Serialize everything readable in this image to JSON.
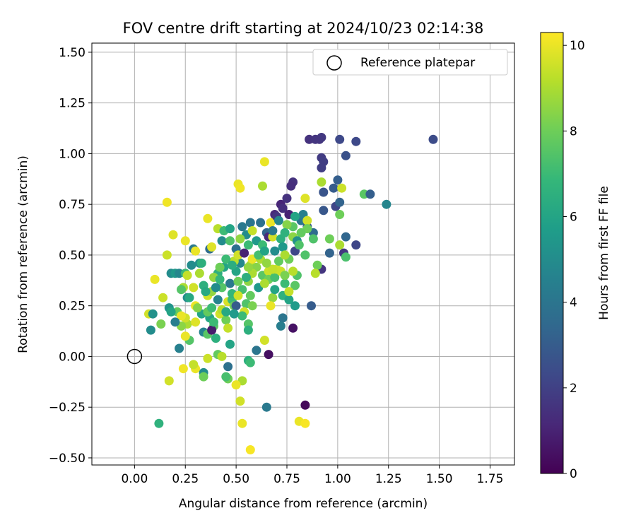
{
  "chart_data": {
    "type": "scatter",
    "title": "FOV centre drift starting at 2024/10/23 02:14:38",
    "xlabel": "Angular distance from reference (arcmin)",
    "ylabel": "Rotation from reference (arcmin)",
    "xlim": [
      -0.21,
      1.87
    ],
    "ylim": [
      -0.535,
      1.545
    ],
    "xticks": [
      "0.00",
      "0.25",
      "0.50",
      "0.75",
      "1.00",
      "1.25",
      "1.50",
      "1.75"
    ],
    "yticks": [
      "−0.50",
      "−0.25",
      "0.00",
      "0.25",
      "0.50",
      "0.75",
      "1.00",
      "1.25",
      "1.50"
    ],
    "xtick_values": [
      0,
      0.25,
      0.5,
      0.75,
      1.0,
      1.25,
      1.5,
      1.75
    ],
    "ytick_values": [
      -0.5,
      -0.25,
      0,
      0.25,
      0.5,
      0.75,
      1.0,
      1.25,
      1.5
    ],
    "grid": true,
    "legend": {
      "position": "top-right",
      "entries": [
        {
          "label": "Reference platepar",
          "marker": "open-circle"
        }
      ]
    },
    "reference_point": {
      "x": 0.0,
      "y": 0.0
    },
    "colorbar": {
      "label": "Hours from first FF file",
      "colormap": "viridis",
      "range": [
        0,
        10.3
      ],
      "ticks": [
        "0",
        "2",
        "4",
        "6",
        "8",
        "10"
      ],
      "tick_values": [
        0,
        2,
        4,
        6,
        8,
        10
      ]
    },
    "colormap_stops": [
      "#440154",
      "#482878",
      "#3e4989",
      "#31688e",
      "#26828e",
      "#1f9e89",
      "#35b779",
      "#6ece58",
      "#b5de2b",
      "#fde725"
    ],
    "points": [
      [
        0.86,
        1.07,
        1.5
      ],
      [
        0.91,
        1.07,
        1.6
      ],
      [
        0.92,
        1.08,
        1.7
      ],
      [
        0.89,
        1.07,
        1.6
      ],
      [
        1.01,
        1.07,
        2.3
      ],
      [
        1.09,
        1.06,
        2.3
      ],
      [
        1.47,
        1.07,
        2.4
      ],
      [
        1.04,
        0.99,
        2.6
      ],
      [
        0.92,
        0.98,
        1.8
      ],
      [
        0.93,
        0.96,
        1.9
      ],
      [
        0.92,
        0.93,
        1.9
      ],
      [
        1.0,
        0.87,
        3.1
      ],
      [
        0.98,
        0.83,
        3.0
      ],
      [
        0.78,
        0.86,
        1.5
      ],
      [
        0.77,
        0.84,
        1.4
      ],
      [
        0.93,
        0.81,
        2.7
      ],
      [
        0.93,
        0.72,
        2.8
      ],
      [
        0.99,
        0.74,
        2.2
      ],
      [
        1.01,
        0.76,
        3.3
      ],
      [
        1.13,
        0.8,
        7.6
      ],
      [
        1.16,
        0.8,
        3.1
      ],
      [
        1.24,
        0.75,
        4.7
      ],
      [
        0.72,
        0.75,
        1.1
      ],
      [
        0.73,
        0.73,
        1.4
      ],
      [
        0.69,
        0.7,
        1.2
      ],
      [
        0.76,
        0.7,
        1.0
      ],
      [
        0.82,
        0.67,
        4.0
      ],
      [
        0.85,
        0.64,
        2.9
      ],
      [
        0.83,
        0.7,
        4.5
      ],
      [
        0.88,
        0.61,
        3.6
      ],
      [
        1.04,
        0.59,
        3.4
      ],
      [
        1.09,
        0.55,
        2.2
      ],
      [
        0.92,
        0.43,
        1.6
      ],
      [
        1.03,
        0.51,
        1.7
      ],
      [
        0.96,
        0.51,
        3.3
      ],
      [
        1.04,
        0.49,
        7.3
      ],
      [
        1.01,
        0.55,
        9.0
      ],
      [
        0.96,
        0.58,
        8.0
      ],
      [
        1.01,
        0.7,
        8.0
      ],
      [
        1.02,
        0.83,
        9.5
      ],
      [
        0.92,
        0.86,
        9.0
      ],
      [
        0.84,
        0.78,
        9.8
      ],
      [
        0.85,
        0.67,
        9.6
      ],
      [
        0.85,
        0.63,
        8.0
      ],
      [
        0.88,
        0.58,
        7.4
      ],
      [
        0.82,
        0.61,
        7.8
      ],
      [
        0.84,
        0.5,
        7.4
      ],
      [
        0.9,
        0.45,
        8.0
      ],
      [
        0.89,
        0.41,
        9.2
      ],
      [
        0.87,
        0.25,
        3.0
      ],
      [
        0.84,
        -0.24,
        0.2
      ],
      [
        0.81,
        -0.32,
        10.0
      ],
      [
        0.84,
        -0.33,
        10.2
      ],
      [
        0.65,
        -0.25,
        4.2
      ],
      [
        0.66,
        0.01,
        0.4
      ],
      [
        0.6,
        0.03,
        4.0
      ],
      [
        0.64,
        0.08,
        9.6
      ],
      [
        0.56,
        -0.02,
        6.5
      ],
      [
        0.57,
        -0.03,
        7.0
      ],
      [
        0.53,
        -0.12,
        9.0
      ],
      [
        0.53,
        -0.33,
        10.0
      ],
      [
        0.57,
        -0.46,
        10.2
      ],
      [
        0.52,
        -0.22,
        9.6
      ],
      [
        0.5,
        -0.14,
        10.0
      ],
      [
        0.46,
        -0.11,
        8.0
      ],
      [
        0.46,
        -0.05,
        3.8
      ],
      [
        0.45,
        -0.1,
        7.2
      ],
      [
        0.41,
        0.01,
        7.8
      ],
      [
        0.36,
        -0.01,
        9.5
      ],
      [
        0.34,
        -0.08,
        5.0
      ],
      [
        0.34,
        -0.1,
        8.0
      ],
      [
        0.3,
        -0.06,
        10.0
      ],
      [
        0.24,
        -0.06,
        10.1
      ],
      [
        0.17,
        -0.12,
        9.6
      ],
      [
        0.12,
        -0.33,
        6.6
      ],
      [
        0.22,
        0.04,
        4.5
      ],
      [
        0.27,
        0.08,
        7.5
      ],
      [
        0.25,
        0.1,
        10.0
      ],
      [
        0.26,
        0.16,
        9.0
      ],
      [
        0.23,
        0.15,
        8.5
      ],
      [
        0.21,
        0.22,
        7.8
      ],
      [
        0.25,
        0.19,
        9.6
      ],
      [
        0.3,
        0.17,
        9.8
      ],
      [
        0.23,
        0.2,
        10.0
      ],
      [
        0.08,
        0.13,
        5.0
      ],
      [
        0.13,
        0.16,
        8.2
      ],
      [
        0.07,
        0.21,
        9.6
      ],
      [
        0.09,
        0.21,
        5.2
      ],
      [
        0.14,
        0.29,
        9.5
      ],
      [
        0.17,
        0.24,
        5.3
      ],
      [
        0.18,
        0.22,
        6.0
      ],
      [
        0.1,
        0.38,
        10.0
      ],
      [
        0.16,
        0.5,
        9.5
      ],
      [
        0.18,
        0.41,
        5.0
      ],
      [
        0.2,
        0.41,
        5.5
      ],
      [
        0.19,
        0.6,
        9.8
      ],
      [
        0.16,
        0.76,
        10.1
      ],
      [
        0.25,
        0.57,
        10.0
      ],
      [
        0.22,
        0.41,
        4.8
      ],
      [
        0.25,
        0.41,
        7.0
      ],
      [
        0.28,
        0.45,
        5.0
      ],
      [
        0.26,
        0.4,
        9.4
      ],
      [
        0.24,
        0.34,
        9.0
      ],
      [
        0.23,
        0.33,
        7.5
      ],
      [
        0.26,
        0.29,
        5.0
      ],
      [
        0.29,
        0.34,
        9.6
      ],
      [
        0.3,
        0.25,
        10.0
      ],
      [
        0.27,
        0.29,
        6.2
      ],
      [
        0.29,
        0.53,
        4.2
      ],
      [
        0.3,
        0.52,
        10.0
      ],
      [
        0.32,
        0.46,
        5.2
      ],
      [
        0.33,
        0.46,
        6.5
      ],
      [
        0.32,
        0.41,
        9.0
      ],
      [
        0.34,
        0.35,
        6.5
      ],
      [
        0.33,
        0.21,
        6.0
      ],
      [
        0.34,
        0.12,
        4.6
      ],
      [
        0.36,
        0.11,
        7.6
      ],
      [
        0.37,
        0.19,
        6.0
      ],
      [
        0.36,
        0.22,
        7.8
      ],
      [
        0.36,
        0.3,
        9.6
      ],
      [
        0.38,
        0.32,
        8.6
      ],
      [
        0.37,
        0.53,
        3.6
      ],
      [
        0.38,
        0.54,
        9.8
      ],
      [
        0.36,
        0.68,
        10.0
      ],
      [
        0.41,
        0.63,
        9.2
      ],
      [
        0.43,
        0.57,
        5.0
      ],
      [
        0.44,
        0.62,
        7.0
      ],
      [
        0.47,
        0.63,
        6.0
      ],
      [
        0.47,
        0.57,
        7.4
      ],
      [
        0.44,
        0.44,
        6.0
      ],
      [
        0.41,
        0.41,
        6.5
      ],
      [
        0.39,
        0.39,
        8.6
      ],
      [
        0.42,
        0.44,
        8.0
      ],
      [
        0.43,
        0.34,
        7.5
      ],
      [
        0.4,
        0.34,
        5.0
      ],
      [
        0.41,
        0.28,
        4.6
      ],
      [
        0.38,
        0.24,
        7.0
      ],
      [
        0.39,
        0.15,
        7.6
      ],
      [
        0.4,
        0.09,
        6.5
      ],
      [
        0.38,
        0.13,
        0.8
      ],
      [
        0.39,
        0.17,
        7.0
      ],
      [
        0.42,
        0.21,
        9.6
      ],
      [
        0.43,
        0.23,
        9.2
      ],
      [
        0.45,
        0.18,
        8.0
      ],
      [
        0.46,
        0.14,
        9.4
      ],
      [
        0.45,
        0.22,
        6.2
      ],
      [
        0.46,
        0.27,
        9.7
      ],
      [
        0.48,
        0.28,
        7.0
      ],
      [
        0.49,
        0.25,
        8.0
      ],
      [
        0.5,
        0.25,
        3.0
      ],
      [
        0.47,
        0.36,
        4.2
      ],
      [
        0.48,
        0.31,
        6.8
      ],
      [
        0.51,
        0.37,
        8.0
      ],
      [
        0.5,
        0.42,
        6.0
      ],
      [
        0.52,
        0.46,
        4.8
      ],
      [
        0.49,
        0.47,
        9.2
      ],
      [
        0.5,
        0.53,
        3.8
      ],
      [
        0.51,
        0.5,
        9.6
      ],
      [
        0.51,
        0.85,
        10.0
      ],
      [
        0.52,
        0.83,
        10.1
      ],
      [
        0.54,
        0.51,
        1.0
      ],
      [
        0.53,
        0.64,
        4.2
      ],
      [
        0.55,
        0.6,
        5.0
      ],
      [
        0.57,
        0.66,
        4.0
      ],
      [
        0.56,
        0.55,
        7.0
      ],
      [
        0.57,
        0.45,
        9.0
      ],
      [
        0.58,
        0.48,
        10.0
      ],
      [
        0.56,
        0.37,
        8.5
      ],
      [
        0.57,
        0.3,
        7.8
      ],
      [
        0.55,
        0.26,
        7.4
      ],
      [
        0.54,
        0.22,
        9.6
      ],
      [
        0.53,
        0.2,
        7.0
      ],
      [
        0.56,
        0.16,
        7.5
      ],
      [
        0.56,
        0.13,
        6.5
      ],
      [
        0.58,
        0.25,
        8.2
      ],
      [
        0.61,
        0.34,
        5.5
      ],
      [
        0.63,
        0.4,
        7.6
      ],
      [
        0.62,
        0.48,
        9.0
      ],
      [
        0.61,
        0.5,
        7.2
      ],
      [
        0.6,
        0.57,
        5.5
      ],
      [
        0.62,
        0.66,
        3.8
      ],
      [
        0.63,
        0.84,
        9.0
      ],
      [
        0.64,
        0.96,
        10.0
      ],
      [
        0.65,
        0.61,
        3.3
      ],
      [
        0.66,
        0.59,
        1.2
      ],
      [
        0.66,
        0.42,
        9.5
      ],
      [
        0.66,
        0.38,
        8.0
      ],
      [
        0.68,
        0.29,
        8.6
      ],
      [
        0.67,
        0.25,
        10.0
      ],
      [
        0.69,
        0.33,
        6.0
      ],
      [
        0.69,
        0.39,
        7.2
      ],
      [
        0.7,
        0.43,
        9.6
      ],
      [
        0.69,
        0.52,
        5.0
      ],
      [
        0.68,
        0.59,
        9.6
      ],
      [
        0.67,
        0.66,
        10.0
      ],
      [
        0.68,
        0.62,
        4.2
      ],
      [
        0.7,
        0.69,
        1.6
      ],
      [
        0.71,
        0.67,
        4.8
      ],
      [
        0.72,
        0.58,
        6.5
      ],
      [
        0.73,
        0.54,
        5.5
      ],
      [
        0.71,
        0.47,
        7.8
      ],
      [
        0.72,
        0.42,
        9.5
      ],
      [
        0.74,
        0.36,
        7.0
      ],
      [
        0.73,
        0.3,
        6.6
      ],
      [
        0.76,
        0.28,
        6.0
      ],
      [
        0.73,
        0.19,
        4.0
      ],
      [
        0.72,
        0.15,
        4.4
      ],
      [
        0.78,
        0.14,
        0.5
      ],
      [
        0.79,
        0.25,
        5.6
      ],
      [
        0.79,
        0.35,
        7.6
      ],
      [
        0.8,
        0.4,
        7.4
      ],
      [
        0.78,
        0.42,
        9.2
      ],
      [
        0.76,
        0.48,
        8.0
      ],
      [
        0.79,
        0.52,
        2.2
      ],
      [
        0.78,
        0.59,
        8.5
      ],
      [
        0.8,
        0.57,
        5.2
      ],
      [
        0.81,
        0.55,
        7.4
      ],
      [
        0.78,
        0.64,
        7.6
      ],
      [
        0.79,
        0.69,
        6.0
      ],
      [
        0.75,
        0.65,
        8.4
      ],
      [
        0.74,
        0.61,
        6.6
      ],
      [
        0.75,
        0.78,
        1.5
      ],
      [
        0.74,
        0.5,
        9.0
      ],
      [
        0.76,
        0.32,
        9.4
      ],
      [
        0.74,
        0.4,
        8.2
      ],
      [
        0.68,
        0.43,
        9.4
      ],
      [
        0.65,
        0.46,
        8.6
      ],
      [
        0.64,
        0.36,
        9.0
      ],
      [
        0.6,
        0.44,
        8.4
      ],
      [
        0.58,
        0.41,
        9.0
      ],
      [
        0.56,
        0.44,
        8.6
      ],
      [
        0.55,
        0.39,
        6.4
      ],
      [
        0.53,
        0.33,
        7.2
      ],
      [
        0.51,
        0.3,
        9.6
      ],
      [
        0.49,
        0.21,
        5.6
      ],
      [
        0.47,
        0.06,
        6.0
      ],
      [
        0.43,
        0.0,
        9.2
      ],
      [
        0.29,
        -0.04,
        9.4
      ],
      [
        0.2,
        0.17,
        4.4
      ],
      [
        0.31,
        0.24,
        8.4
      ],
      [
        0.35,
        0.32,
        6.2
      ],
      [
        0.42,
        0.38,
        6.8
      ],
      [
        0.45,
        0.48,
        7.0
      ],
      [
        0.48,
        0.45,
        6.4
      ],
      [
        0.52,
        0.58,
        8.6
      ],
      [
        0.58,
        0.62,
        9.4
      ],
      [
        0.63,
        0.55,
        7.0
      ],
      [
        0.64,
        0.52,
        6.0
      ]
    ]
  }
}
